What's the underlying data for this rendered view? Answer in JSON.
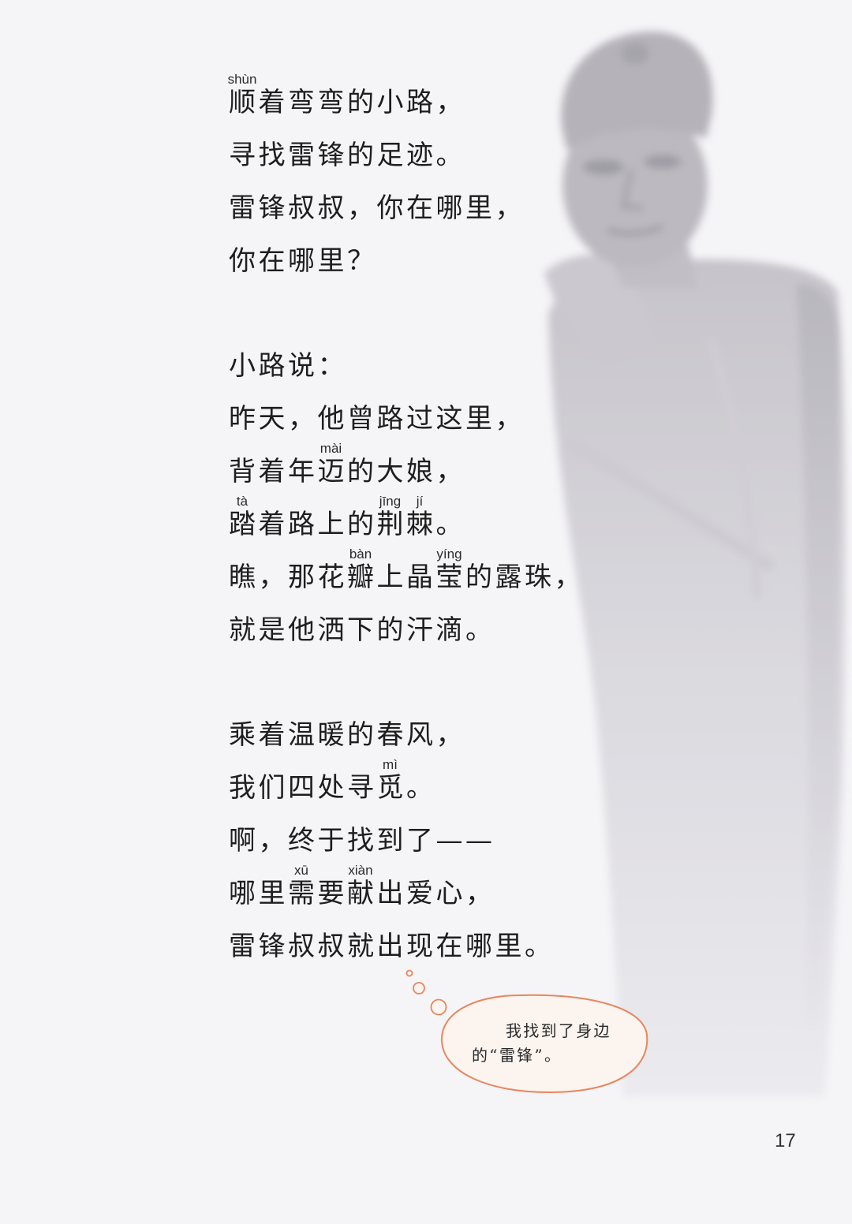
{
  "poem": {
    "stanzas": [
      {
        "lines": [
          {
            "segments": [
              {
                "text": "顺",
                "pinyin": "shùn"
              },
              {
                "text": "着弯弯的小路，"
              }
            ]
          },
          {
            "segments": [
              {
                "text": "寻找雷锋的足迹。"
              }
            ]
          },
          {
            "segments": [
              {
                "text": "雷锋叔叔，你在哪里，"
              }
            ]
          },
          {
            "segments": [
              {
                "text": "你在哪里？"
              }
            ]
          }
        ]
      },
      {
        "lines": [
          {
            "segments": [
              {
                "text": "小路说："
              }
            ]
          },
          {
            "segments": [
              {
                "text": "昨天，他曾路过这里，"
              }
            ]
          },
          {
            "segments": [
              {
                "text": "背着年"
              },
              {
                "text": "迈",
                "pinyin": "mài"
              },
              {
                "text": "的大娘，"
              }
            ]
          },
          {
            "segments": [
              {
                "text": "踏",
                "pinyin": "tà"
              },
              {
                "text": "着路上的"
              },
              {
                "text": "荆",
                "pinyin": "jīng"
              },
              {
                "text": "棘",
                "pinyin": "jí"
              },
              {
                "text": "。"
              }
            ]
          },
          {
            "segments": [
              {
                "text": "瞧，那花"
              },
              {
                "text": "瓣",
                "pinyin": "bàn"
              },
              {
                "text": "上晶"
              },
              {
                "text": "莹",
                "pinyin": "yíng"
              },
              {
                "text": "的露珠，"
              }
            ]
          },
          {
            "segments": [
              {
                "text": "就是他洒下的汗滴。"
              }
            ]
          }
        ]
      },
      {
        "lines": [
          {
            "segments": [
              {
                "text": "乘着温暖的春风，"
              }
            ]
          },
          {
            "segments": [
              {
                "text": "我们四处寻"
              },
              {
                "text": "觅",
                "pinyin": "mì"
              },
              {
                "text": "。"
              }
            ]
          },
          {
            "segments": [
              {
                "text": "啊，终于找到了——"
              }
            ]
          },
          {
            "segments": [
              {
                "text": "哪里"
              },
              {
                "text": "需",
                "pinyin": "xū"
              },
              {
                "text": "要"
              },
              {
                "text": "献",
                "pinyin": "xiàn"
              },
              {
                "text": "出爱心，"
              }
            ]
          },
          {
            "segments": [
              {
                "text": "雷锋叔叔就出现在哪里。"
              }
            ]
          }
        ]
      }
    ]
  },
  "thought_bubble": {
    "lines": [
      "我找到了身边",
      "的“雷锋”。"
    ]
  },
  "page_number": "17",
  "colors": {
    "text": "#1e1e1e",
    "pinyin": "#2b2b2b",
    "bubble_outline": "#e8865e",
    "bubble_fill": "#fbf4ef",
    "page_background": "#f5f4f7"
  }
}
